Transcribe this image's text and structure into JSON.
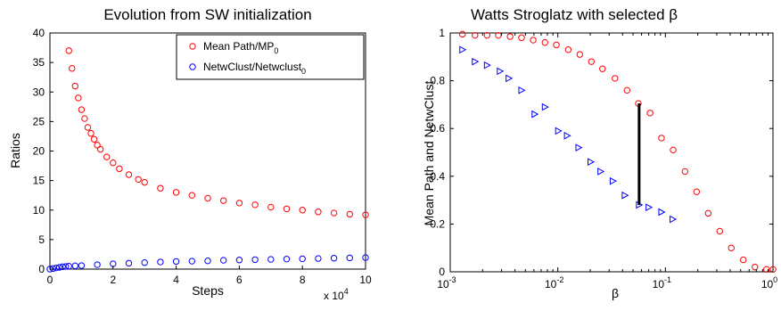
{
  "chart_data": [
    {
      "type": "scatter",
      "title": "Evolution from SW initialization",
      "xlabel": "Steps",
      "ylabel": "Ratios",
      "x_multiplier_label": "x 10",
      "x_multiplier_exp": "4",
      "xlim": [
        0,
        10
      ],
      "ylim": [
        0,
        40
      ],
      "xticks": [
        "0",
        "2",
        "4",
        "6",
        "8",
        "10"
      ],
      "yticks": [
        "0",
        "5",
        "10",
        "15",
        "20",
        "25",
        "30",
        "35",
        "40"
      ],
      "legend": "top-right",
      "grid": false,
      "series": [
        {
          "name": "Mean Path/MP",
          "name_sub": "0",
          "color": "#ff0000",
          "marker": "circle",
          "x": [
            0.6,
            0.7,
            0.8,
            0.9,
            1.0,
            1.1,
            1.2,
            1.3,
            1.4,
            1.5,
            1.6,
            1.8,
            2.0,
            2.2,
            2.5,
            2.8,
            3.0,
            3.5,
            4.0,
            4.5,
            5.0,
            5.5,
            6.0,
            6.5,
            7.0,
            7.5,
            8.0,
            8.5,
            9.0,
            9.5,
            10.0
          ],
          "y": [
            37.0,
            34.0,
            31.0,
            29.0,
            27.0,
            25.5,
            24.0,
            23.0,
            22.0,
            21.0,
            20.3,
            19.0,
            18.0,
            17.0,
            16.0,
            15.2,
            14.7,
            13.7,
            13.0,
            12.5,
            12.0,
            11.6,
            11.2,
            10.9,
            10.5,
            10.2,
            10.0,
            9.7,
            9.5,
            9.3,
            9.2
          ]
        },
        {
          "name": "NetwClust/Netwclust",
          "name_sub": "0",
          "color": "#0000ff",
          "marker": "circle",
          "x": [
            0.0,
            0.1,
            0.2,
            0.3,
            0.4,
            0.5,
            0.6,
            0.8,
            1.0,
            1.5,
            2.0,
            2.5,
            3.0,
            3.5,
            4.0,
            4.5,
            5.0,
            5.5,
            6.0,
            6.5,
            7.0,
            7.5,
            8.0,
            8.5,
            9.0,
            9.5,
            10.0
          ],
          "y": [
            0.0,
            0.1,
            0.2,
            0.3,
            0.4,
            0.45,
            0.5,
            0.55,
            0.6,
            0.75,
            0.9,
            1.0,
            1.1,
            1.2,
            1.3,
            1.35,
            1.4,
            1.5,
            1.55,
            1.6,
            1.65,
            1.7,
            1.75,
            1.8,
            1.85,
            1.9,
            1.95
          ]
        }
      ]
    },
    {
      "type": "scatter",
      "title": "Watts Stroglatz with selected β",
      "xlabel": "β",
      "ylabel": "Mean Path and NetwClust",
      "x_scale": "log",
      "xlim": [
        0.001,
        1
      ],
      "ylim": [
        0,
        1
      ],
      "xticks": [
        {
          "base": "10",
          "exp": "-3"
        },
        {
          "base": "10",
          "exp": "-2"
        },
        {
          "base": "10",
          "exp": "-1"
        },
        {
          "base": "10",
          "exp": "0"
        }
      ],
      "yticks": [
        "0",
        "0.2",
        "0.4",
        "0.6",
        "0.8",
        "1"
      ],
      "grid": false,
      "series": [
        {
          "color": "#ff0000",
          "marker": "circle",
          "x": [
            0.0013,
            0.0017,
            0.0022,
            0.0028,
            0.0036,
            0.0046,
            0.0059,
            0.0076,
            0.0097,
            0.0125,
            0.016,
            0.0205,
            0.026,
            0.034,
            0.044,
            0.056,
            0.072,
            0.092,
            0.118,
            0.152,
            0.195,
            0.25,
            0.32,
            0.41,
            0.53,
            0.68,
            0.87,
            1.0
          ],
          "y": [
            0.995,
            0.99,
            0.99,
            0.99,
            0.985,
            0.98,
            0.97,
            0.96,
            0.95,
            0.93,
            0.91,
            0.88,
            0.85,
            0.81,
            0.76,
            0.705,
            0.665,
            0.56,
            0.51,
            0.42,
            0.335,
            0.245,
            0.17,
            0.1,
            0.05,
            0.02,
            0.01,
            0.01
          ]
        },
        {
          "color": "#0000ff",
          "marker": "triangle-right",
          "x": [
            0.0013,
            0.0017,
            0.0022,
            0.0029,
            0.0035,
            0.0046,
            0.0061,
            0.0076,
            0.0101,
            0.0122,
            0.0156,
            0.0202,
            0.025,
            0.0325,
            0.042,
            0.057,
            0.07,
            0.092,
            0.117
          ],
          "y": [
            0.93,
            0.88,
            0.865,
            0.84,
            0.81,
            0.76,
            0.66,
            0.69,
            0.59,
            0.57,
            0.52,
            0.46,
            0.42,
            0.38,
            0.32,
            0.28,
            0.27,
            0.25,
            0.22
          ]
        }
      ],
      "annotation": {
        "type": "vertical-line",
        "x": 0.057,
        "y_from": 0.28,
        "y_to": 0.705,
        "color": "#000000"
      }
    }
  ]
}
